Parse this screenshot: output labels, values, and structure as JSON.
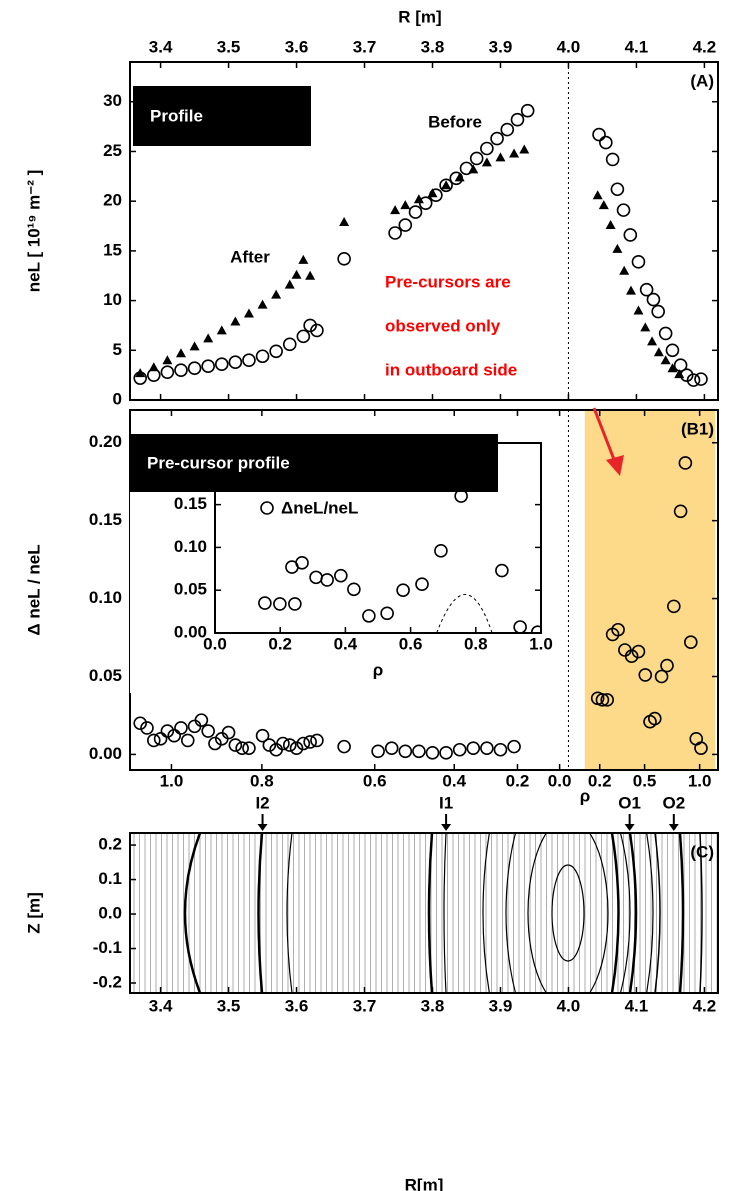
{
  "chart_data": [
    {
      "type": "scatter",
      "panel": "(A)",
      "xlabel": "R [m]",
      "ylabel": "neL [ 10¹⁹ m⁻² ]",
      "callout": "Profile",
      "note": [
        "Pre-cursors are",
        "observed only",
        "in outboard side"
      ],
      "xlim": [
        3.355,
        4.22
      ],
      "ylim": [
        0,
        34
      ],
      "xticks": [
        3.4,
        3.5,
        3.6,
        3.7,
        3.8,
        3.9,
        {
          "value": 4,
          "label": "4.0"
        },
        4.1,
        4.2
      ],
      "yticks": [
        0,
        5,
        10,
        15,
        20,
        25,
        30
      ],
      "vline": 4,
      "series": [
        {
          "name": "Before",
          "marker": "circle",
          "color": "#000000",
          "x": [
            3.37,
            3.39,
            3.41,
            3.43,
            3.45,
            3.47,
            3.49,
            3.51,
            3.53,
            3.55,
            3.57,
            3.59,
            3.61,
            3.62,
            3.63,
            3.67,
            3.745,
            3.76,
            3.775,
            3.79,
            3.805,
            3.82,
            3.835,
            3.85,
            3.865,
            3.88,
            3.895,
            3.91,
            3.925,
            3.94,
            4.045,
            4.055,
            4.065,
            4.072,
            4.081,
            4.091,
            4.103,
            4.115,
            4.125,
            4.132,
            4.143,
            4.153,
            4.165,
            4.174,
            4.184,
            4.195
          ],
          "values": [
            2.2,
            2.5,
            2.8,
            3.0,
            3.2,
            3.4,
            3.6,
            3.8,
            4.0,
            4.4,
            4.9,
            5.6,
            6.4,
            7.5,
            7.0,
            14.2,
            16.8,
            17.6,
            18.9,
            19.8,
            20.6,
            21.6,
            22.3,
            23.3,
            24.3,
            25.3,
            26.3,
            27.2,
            28.2,
            29.1,
            26.7,
            25.9,
            24.2,
            21.2,
            19.1,
            16.6,
            13.9,
            11.1,
            10.1,
            8.9,
            6.7,
            5.0,
            3.5,
            2.5,
            2.0,
            2.1
          ]
        },
        {
          "name": "After",
          "marker": "triangle",
          "color": "#000000",
          "x": [
            3.37,
            3.39,
            3.41,
            3.43,
            3.45,
            3.47,
            3.49,
            3.51,
            3.53,
            3.55,
            3.57,
            3.59,
            3.6,
            3.61,
            3.62,
            3.67,
            3.745,
            3.76,
            3.78,
            3.8,
            3.82,
            3.84,
            3.86,
            3.88,
            3.9,
            3.92,
            3.935,
            4.043,
            4.052,
            4.062,
            4.072,
            4.082,
            4.092,
            4.103,
            4.113,
            4.123,
            4.133,
            4.143,
            4.153,
            4.163
          ],
          "values": [
            2.7,
            3.3,
            4.0,
            4.7,
            5.4,
            6.2,
            7.0,
            7.9,
            8.7,
            9.6,
            10.6,
            11.6,
            12.6,
            14.1,
            12.5,
            17.9,
            19.1,
            19.6,
            20.2,
            20.8,
            21.6,
            22.4,
            23.2,
            23.9,
            24.4,
            24.8,
            25.2,
            20.6,
            19.6,
            17.6,
            15.2,
            13.0,
            11.0,
            9.0,
            7.3,
            5.9,
            4.8,
            4.0,
            3.2,
            2.6
          ]
        }
      ]
    },
    {
      "type": "scatter",
      "panel": "(B1)",
      "xlabel": "ρ",
      "ylabel": "Δ neL / neL",
      "callout": "Pre-cursor profile",
      "xlim": [
        3.355,
        4.22
      ],
      "ylim": [
        -0.01,
        0.221
      ],
      "vline": 4,
      "span": [
        4.024,
        4.216
      ],
      "xticks": [
        {
          "value": 3.416,
          "label": "1.0"
        },
        {
          "value": 3.549,
          "label": "0.8"
        },
        {
          "value": 3.715,
          "label": "0.6"
        },
        {
          "value": 3.832,
          "label": "0.4"
        },
        {
          "value": 3.925,
          "label": "0.2"
        },
        {
          "value": 3.987,
          "label": "0.0"
        },
        {
          "value": 4.046,
          "label": "0.2"
        },
        {
          "value": 4.112,
          "label": "0.5"
        },
        {
          "value": 4.193,
          "label": "1.0"
        }
      ],
      "yticks": [
        {
          "value": 0,
          "label": "0.00"
        },
        {
          "value": 0.05,
          "label": "0.05"
        },
        {
          "value": 0.1,
          "label": "0.10"
        },
        {
          "value": 0.15,
          "label": "0.15"
        },
        {
          "value": 0.2,
          "label": "0.20"
        }
      ],
      "series": [
        {
          "marker": "circle",
          "color": "#000000",
          "x": [
            3.37,
            3.38,
            3.39,
            3.4,
            3.41,
            3.42,
            3.43,
            3.44,
            3.45,
            3.46,
            3.47,
            3.48,
            3.49,
            3.5,
            3.51,
            3.52,
            3.53,
            3.55,
            3.56,
            3.57,
            3.58,
            3.59,
            3.6,
            3.61,
            3.62,
            3.63,
            3.67,
            3.72,
            3.74,
            3.76,
            3.78,
            3.8,
            3.82,
            3.84,
            3.86,
            3.88,
            3.9,
            3.92,
            4.043,
            4.05,
            4.057,
            4.065,
            4.073,
            4.083,
            4.093,
            4.103,
            4.113,
            4.12,
            4.127,
            4.137,
            4.145,
            4.155,
            4.165,
            4.172,
            4.18,
            4.188,
            4.195
          ],
          "values": [
            0.02,
            0.017,
            0.009,
            0.01,
            0.015,
            0.012,
            0.017,
            0.009,
            0.018,
            0.022,
            0.015,
            0.007,
            0.01,
            0.014,
            0.006,
            0.004,
            0.004,
            0.012,
            0.006,
            0.003,
            0.007,
            0.006,
            0.004,
            0.007,
            0.008,
            0.009,
            0.005,
            0.002,
            0.004,
            0.002,
            0.002,
            0.001,
            0.001,
            0.003,
            0.004,
            0.004,
            0.003,
            0.005,
            0.036,
            0.035,
            0.035,
            0.077,
            0.08,
            0.067,
            0.063,
            0.066,
            0.051,
            0.021,
            0.023,
            0.05,
            0.057,
            0.095,
            0.156,
            0.187,
            0.072,
            0.01,
            0.004
          ]
        }
      ]
    },
    {
      "type": "scatter",
      "xlabel": "ρ",
      "xlim": [
        0,
        1
      ],
      "ylim": [
        0,
        0.222
      ],
      "xticks": [
        {
          "value": 0,
          "label": "0.0"
        },
        0.2,
        0.4,
        0.6,
        0.8,
        {
          "value": 1,
          "label": "1.0"
        }
      ],
      "yticks": [
        {
          "value": 0,
          "label": "0.00"
        },
        {
          "value": 0.05,
          "label": "0.05"
        },
        {
          "value": 0.1,
          "label": "0.10"
        },
        {
          "value": 0.15,
          "label": "0.15"
        }
      ],
      "series": [
        {
          "name": "ΔneL/neL",
          "marker": "circle",
          "color": "#000000",
          "x": [
            0.153,
            0.199,
            0.245,
            0.236,
            0.267,
            0.31,
            0.344,
            0.386,
            0.426,
            0.472,
            0.528,
            0.577,
            0.635,
            0.693,
            0.755,
            0.88,
            0.936,
            0.99
          ],
          "values": [
            0.035,
            0.034,
            0.034,
            0.077,
            0.082,
            0.065,
            0.062,
            0.067,
            0.051,
            0.02,
            0.023,
            0.05,
            0.057,
            0.096,
            0.16,
            0.073,
            0.007,
            0.001
          ]
        }
      ]
    },
    {
      "type": "contour",
      "panel": "(C)",
      "xlabel": "R[m]",
      "ylabel": "Z [m]",
      "xlim": [
        3.355,
        4.22
      ],
      "ylim": [
        -0.229,
        0.235
      ],
      "xticks": [
        3.4,
        3.5,
        3.6,
        3.7,
        3.8,
        3.9,
        {
          "value": 4,
          "label": "4.0"
        },
        4.1,
        4.2
      ],
      "yticks": [
        0.2,
        0.1,
        {
          "value": 0,
          "label": "0.0"
        },
        -0.1,
        -0.2
      ],
      "markers": [
        {
          "label": "I2",
          "x": 3.55
        },
        {
          "label": "I1",
          "x": 3.82
        },
        {
          "label": "O1",
          "x": 4.09
        },
        {
          "label": "O2",
          "x": 4.155
        }
      ]
    }
  ]
}
